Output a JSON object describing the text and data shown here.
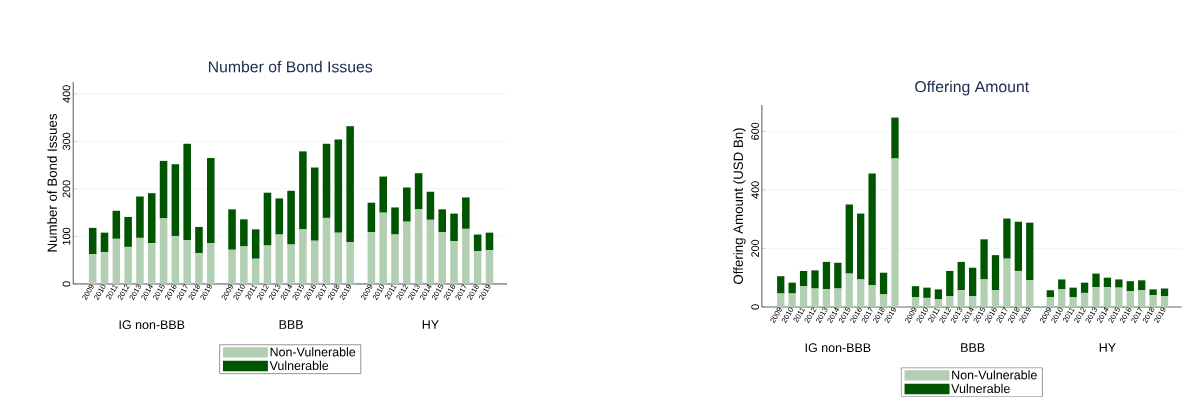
{
  "chart_data": [
    {
      "type": "bar",
      "title": "Number of Bond Issues",
      "ylabel": "Number of Bond Issues",
      "categories": [
        "2009",
        "2010",
        "2011",
        "2012",
        "2013",
        "2014",
        "2015",
        "2016",
        "2017",
        "2018",
        "2019",
        "2009",
        "2010",
        "2011",
        "2012",
        "2013",
        "2014",
        "2015",
        "2016",
        "2017",
        "2018",
        "2019",
        "2009",
        "2010",
        "2011",
        "2012",
        "2013",
        "2014",
        "2015",
        "2016",
        "2017",
        "2018",
        "2019"
      ],
      "annotations": [
        "IG non-BBB",
        "BBB",
        "HY"
      ],
      "series": [
        {
          "name": "Non-Vulnerable",
          "color": "#b3cfb3",
          "values": [
            63,
            67,
            95,
            78,
            97,
            86,
            138,
            101,
            92,
            65,
            86,
            72,
            79,
            53,
            81,
            104,
            83,
            115,
            91,
            139,
            108,
            88,
            109,
            150,
            104,
            131,
            157,
            135,
            109,
            90,
            116,
            69,
            71
          ]
        },
        {
          "name": "Vulnerable",
          "color": "#005500",
          "values": [
            55,
            41,
            59,
            63,
            87,
            105,
            121,
            151,
            203,
            55,
            179,
            85,
            57,
            62,
            111,
            76,
            113,
            164,
            154,
            156,
            196,
            244,
            62,
            76,
            57,
            72,
            76,
            59,
            48,
            58,
            66,
            35,
            37
          ]
        }
      ],
      "stacked": true,
      "ylim": [
        0,
        425
      ],
      "yticks": [
        0,
        100,
        200,
        300,
        400
      ],
      "grid": "y",
      "legend": "bottom"
    },
    {
      "type": "bar",
      "title": "Offering Amount",
      "ylabel": "Offering Amount (USD Bn)",
      "categories": [
        "2009",
        "2010",
        "2011",
        "2012",
        "2013",
        "2014",
        "2015",
        "2016",
        "2017",
        "2018",
        "2019",
        "2009",
        "2010",
        "2011",
        "2012",
        "2013",
        "2014",
        "2015",
        "2016",
        "2017",
        "2018",
        "2019",
        "2009",
        "2010",
        "2011",
        "2012",
        "2013",
        "2014",
        "2015",
        "2016",
        "2017",
        "2018",
        "2019"
      ],
      "annotations": [
        "IG non-BBB",
        "BBB",
        "HY"
      ],
      "series": [
        {
          "name": "Non-Vulnerable",
          "color": "#b3cfb3",
          "values": [
            46,
            46,
            71,
            63,
            61,
            63,
            114,
            94,
            74,
            43,
            507,
            34,
            31,
            26,
            37,
            57,
            37,
            94,
            57,
            165,
            123,
            91,
            34,
            60,
            34,
            48,
            68,
            68,
            66,
            54,
            57,
            40,
            37
          ]
        },
        {
          "name": "Vulnerable",
          "color": "#005500",
          "values": [
            59,
            37,
            52,
            62,
            93,
            88,
            236,
            225,
            382,
            74,
            140,
            37,
            35,
            34,
            86,
            97,
            97,
            137,
            120,
            137,
            168,
            197,
            23,
            34,
            32,
            35,
            46,
            32,
            28,
            34,
            34,
            20,
            26
          ]
        }
      ],
      "stacked": true,
      "ylim": [
        0,
        690
      ],
      "yticks": [
        0,
        200,
        400,
        600
      ],
      "grid": "y",
      "legend": "bottom"
    }
  ]
}
